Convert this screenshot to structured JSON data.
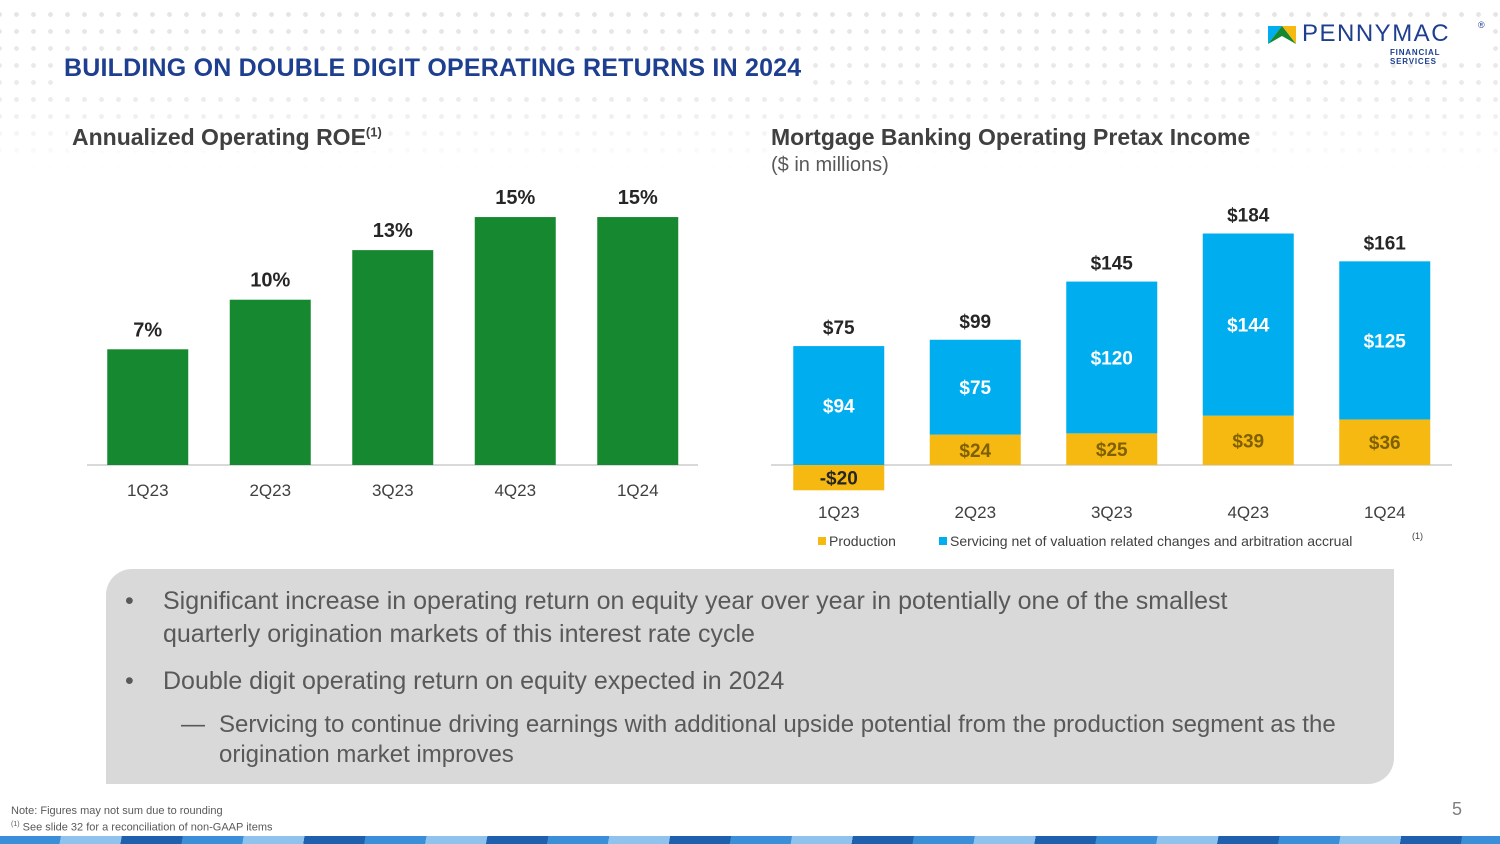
{
  "slide": {
    "title": "BUILDING ON DOUBLE DIGIT OPERATING RETURNS IN 2024",
    "logo_word": "PENNYMAC",
    "logo_sub": "FINANCIAL SERVICES",
    "logo_reg": "®",
    "page_number": "5"
  },
  "left_chart_header": {
    "title": "Annualized Operating ROE",
    "footnote_mark": "(1)"
  },
  "right_chart_header": {
    "title": "Mortgage Banking Operating Pretax Income",
    "subtitle": "($ in millions)"
  },
  "colors": {
    "green": "#168930",
    "blue": "#00adef",
    "gold": "#f6b912",
    "navy": "#1e3f8f",
    "gray_text": "#595959"
  },
  "chart_data": [
    {
      "type": "bar",
      "title": "Annualized Operating ROE",
      "categories": [
        "1Q23",
        "2Q23",
        "3Q23",
        "4Q23",
        "1Q24"
      ],
      "values": [
        7,
        10,
        13,
        15,
        15
      ],
      "value_labels": [
        "7%",
        "10%",
        "13%",
        "15%",
        "15%"
      ],
      "unit": "%",
      "ylim": [
        0,
        17
      ],
      "grid": false
    },
    {
      "type": "bar",
      "stacked": true,
      "title": "Mortgage Banking Operating Pretax Income",
      "subtitle": "($ in millions)",
      "categories": [
        "1Q23",
        "2Q23",
        "3Q23",
        "4Q23",
        "1Q24"
      ],
      "series": [
        {
          "name": "Production",
          "values": [
            -20,
            24,
            25,
            39,
            36
          ],
          "labels": [
            "-$20",
            "$24",
            "$25",
            "$39",
            "$36"
          ]
        },
        {
          "name": "Servicing net of valuation related changes and arbitration accrual",
          "values": [
            94,
            75,
            120,
            144,
            125
          ],
          "labels": [
            "$94",
            "$75",
            "$120",
            "$144",
            "$125"
          ]
        }
      ],
      "totals": [
        75,
        99,
        145,
        184,
        161
      ],
      "total_labels": [
        "$75",
        "$99",
        "$145",
        "$184",
        "$161"
      ],
      "legend_footnote": "(1)",
      "legend_position": "bottom-left",
      "ylim": [
        -25,
        195
      ],
      "grid": false
    }
  ],
  "bullets": [
    {
      "text_line1": "Significant increase in operating return on equity year over year in potentially one of the smallest",
      "text_line2": "quarterly origination markets of this interest rate cycle"
    },
    {
      "text_line1": "Double digit operating return on equity expected in 2024"
    }
  ],
  "sub_bullets": [
    {
      "text_line1": "Servicing to continue driving earnings with additional upside potential from the production segment as the",
      "text_line2": "origination market improves"
    }
  ],
  "bullet_symbol": "•",
  "sub_bullet_symbol": "—",
  "notes": {
    "line1": "Note: Figures may not sum due to rounding",
    "line2_mark": "(1)",
    "line2": " See slide 32 for a reconciliation of non-GAAP items"
  }
}
